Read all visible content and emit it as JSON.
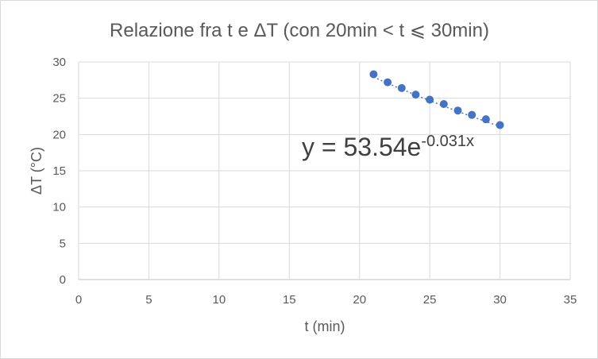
{
  "chart_data": {
    "type": "scatter",
    "title": "Relazione fra t e ΔT (con 20min < t ⩽ 30min)",
    "xlabel": "t (min)",
    "ylabel": "ΔT  (°C)",
    "xlim": [
      0,
      35
    ],
    "ylim": [
      0,
      30
    ],
    "xticks": [
      0,
      5,
      10,
      15,
      20,
      25,
      30,
      35
    ],
    "yticks": [
      0,
      5,
      10,
      15,
      20,
      25,
      30
    ],
    "grid": true,
    "legend": "none",
    "marker_color": "#4472c4",
    "series": [
      {
        "x": [
          21,
          22,
          23,
          24,
          25,
          26,
          27,
          28,
          29,
          30
        ],
        "y": [
          28.3,
          27.2,
          26.4,
          25.5,
          24.8,
          24.2,
          23.3,
          22.7,
          22.1,
          21.3
        ]
      }
    ],
    "trendline": {
      "type": "exponential",
      "a": 53.54,
      "b": -0.031,
      "equation_base": "y = 53.54e",
      "equation_exponent": "-0.031x"
    }
  }
}
